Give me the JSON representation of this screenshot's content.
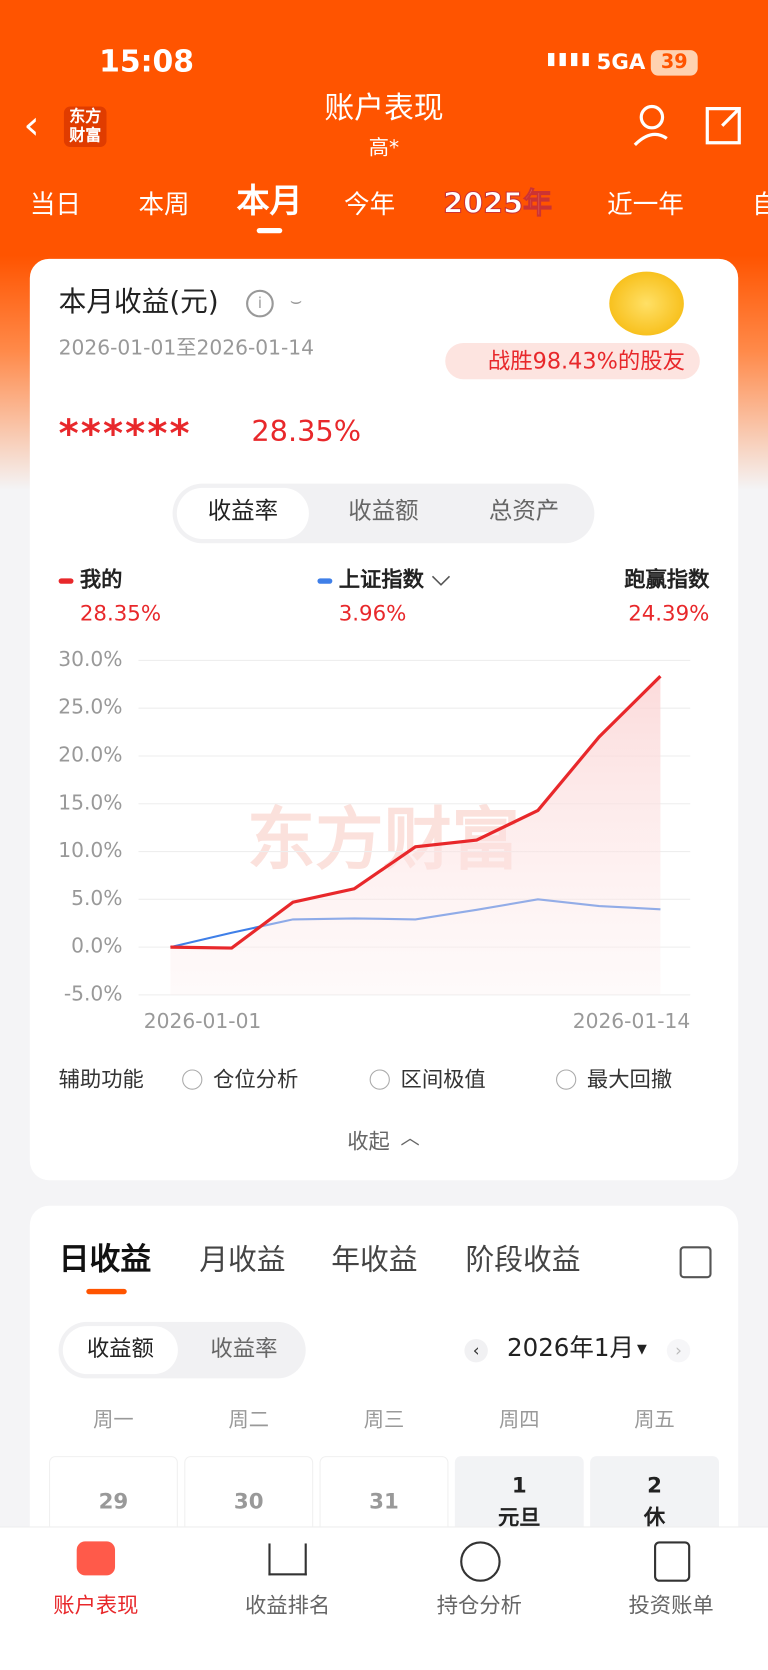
{
  "status_bar": {
    "time": "15:08",
    "network": "5GA",
    "battery": "39"
  },
  "header": {
    "logo": "东方财富",
    "title": "账户表现",
    "subtitle": "高*"
  },
  "period_tabs": [
    "当日",
    "本周",
    "本月",
    "今年",
    "2025年",
    "近一年",
    "自"
  ],
  "summary": {
    "title": "本月收益(元)",
    "date_range": "2026-01-01至2026-01-14",
    "rank_badge": "战胜98.43%的股友",
    "amount": "******",
    "return": "28.35%"
  },
  "metric_tabs": [
    "收益率",
    "收益额",
    "总资产"
  ],
  "chart_data": {
    "type": "line",
    "watermark": "东方财富",
    "categories": [
      "2026-01-01",
      null,
      null,
      null,
      null,
      null,
      null,
      null,
      "2026-01-14"
    ],
    "series": [
      {
        "name": "我的",
        "color": "#e8282b",
        "values": [
          0,
          -0.1,
          4.7,
          6.1,
          10.5,
          11.2,
          14.3,
          22.0,
          28.35
        ],
        "value_label": "28.35%"
      },
      {
        "name": "上证指数",
        "color": "#3f7fe8",
        "values": [
          0,
          1.5,
          2.9,
          3.0,
          2.9,
          3.9,
          5.0,
          4.3,
          3.96
        ],
        "value_label": "3.96%"
      }
    ],
    "excess": {
      "name": "跑赢指数",
      "value_label": "24.39%"
    },
    "ylim": [
      -5,
      30
    ],
    "yticks": [
      {
        "value": -5,
        "label": "-5.0%"
      },
      {
        "value": 0,
        "label": "0.0%"
      },
      {
        "value": 5,
        "label": "5.0%"
      },
      {
        "value": 10,
        "label": "10.0%"
      },
      {
        "value": 15,
        "label": "15.0%"
      },
      {
        "value": 20,
        "label": "20.0%"
      },
      {
        "value": 25,
        "label": "25.0%"
      },
      {
        "value": 30,
        "label": "30.0%"
      }
    ],
    "grid": true
  },
  "tools": {
    "label": "辅助功能",
    "options": [
      "仓位分析",
      "区间极值",
      "最大回撤"
    ]
  },
  "collapse": "收起",
  "earnings": {
    "tabs": [
      "日收益",
      "月收益",
      "年收益",
      "阶段收益"
    ],
    "toggle": [
      "收益额",
      "收益率"
    ],
    "month": "2026年1月",
    "weekdays": [
      "周一",
      "周二",
      "周三",
      "周四",
      "周五"
    ],
    "days": [
      {
        "day": 29
      },
      {
        "day": 30
      },
      {
        "day": 31
      },
      {
        "day": 1,
        "note": "元旦"
      },
      {
        "day": 2,
        "note": "休"
      }
    ]
  },
  "bottom_nav": [
    "账户表现",
    "收益排名",
    "持仓分析",
    "投资账单"
  ]
}
